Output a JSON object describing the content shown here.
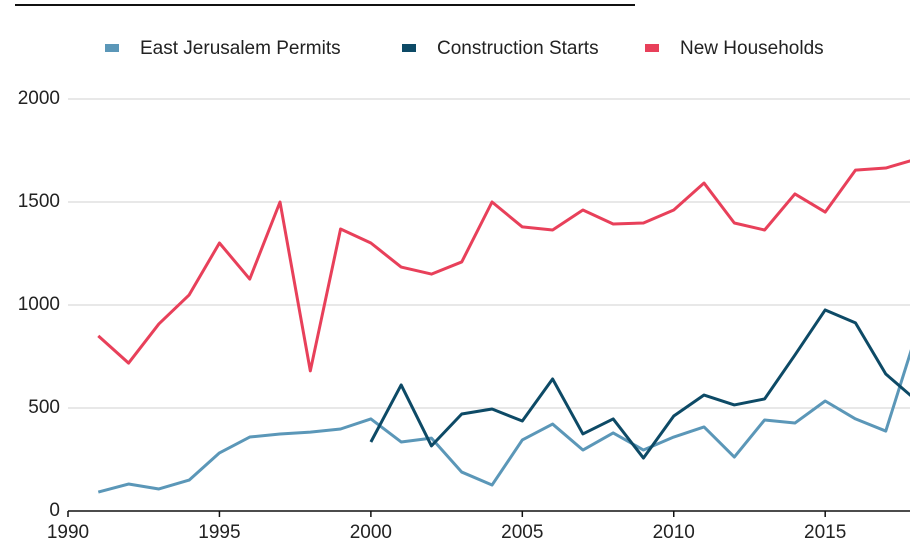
{
  "chart_data": {
    "type": "line",
    "xlim": [
      1990,
      2017.8
    ],
    "xticks": [
      1990,
      1995,
      2000,
      2005,
      2010,
      2015
    ],
    "ylim": [
      0,
      2000
    ],
    "yticks": [
      0,
      500,
      1000,
      1500,
      2000
    ],
    "grid": true,
    "x": [
      1991,
      1992,
      1993,
      1994,
      1995,
      1996,
      1997,
      1998,
      1999,
      2000,
      2001,
      2002,
      2003,
      2004,
      2005,
      2006,
      2007,
      2008,
      2009,
      2010,
      2011,
      2012,
      2013,
      2014,
      2015,
      2016,
      2017,
      2018
    ],
    "series": [
      {
        "name": "East Jerusalem Permits",
        "color": "#5b97b8",
        "values": [
          92,
          131,
          107,
          150,
          282,
          359,
          374,
          383,
          398,
          447,
          335,
          354,
          189,
          126,
          345,
          422,
          296,
          379,
          296,
          359,
          408,
          262,
          442,
          427,
          534,
          447,
          388,
          855
        ]
      },
      {
        "name": "Construction Starts",
        "color": "#0d4a66",
        "values": [
          null,
          null,
          null,
          null,
          null,
          null,
          null,
          null,
          null,
          335,
          612,
          316,
          471,
          495,
          437,
          641,
          374,
          447,
          257,
          461,
          563,
          515,
          544,
          757,
          976,
          913,
          665,
          538
        ]
      },
      {
        "name": "New Households",
        "color": "#e8405a",
        "values": [
          850,
          718,
          908,
          1049,
          1301,
          1126,
          1500,
          680,
          1369,
          1301,
          1184,
          1150,
          1209,
          1500,
          1379,
          1364,
          1461,
          1393,
          1398,
          1461,
          1592,
          1398,
          1364,
          1539,
          1451,
          1655,
          1665,
          1708
        ]
      }
    ]
  }
}
